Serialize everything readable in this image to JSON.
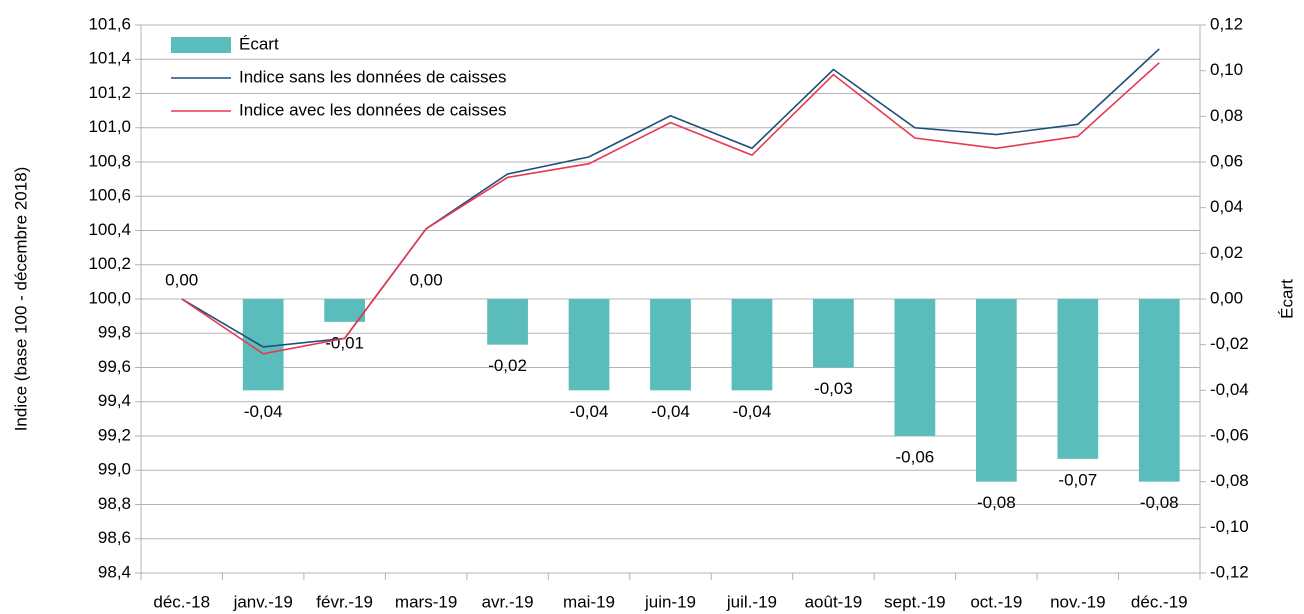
{
  "chart_data": {
    "type": "combo",
    "categories": [
      "déc.-18",
      "janv.-19",
      "févr.-19",
      "mars-19",
      "avr.-19",
      "mai-19",
      "juin-19",
      "juil.-19",
      "août-19",
      "sept.-19",
      "oct.-19",
      "nov.-19",
      "déc.-19"
    ],
    "ylabel": "Indice (base 100 - décembre 2018)",
    "y2label": "Écart",
    "ylim": [
      98.4,
      101.6
    ],
    "yticks": [
      {
        "value": 98.4,
        "label": "98,4"
      },
      {
        "value": 98.6,
        "label": "98,6"
      },
      {
        "value": 98.8,
        "label": "98,8"
      },
      {
        "value": 99.0,
        "label": "99,0"
      },
      {
        "value": 99.2,
        "label": "99,2"
      },
      {
        "value": 99.4,
        "label": "99,4"
      },
      {
        "value": 99.6,
        "label": "99,6"
      },
      {
        "value": 99.8,
        "label": "99,8"
      },
      {
        "value": 100.0,
        "label": "100,0"
      },
      {
        "value": 100.2,
        "label": "100,2"
      },
      {
        "value": 100.4,
        "label": "100,4"
      },
      {
        "value": 100.6,
        "label": "100,6"
      },
      {
        "value": 100.8,
        "label": "100,8"
      },
      {
        "value": 101.0,
        "label": "101,0"
      },
      {
        "value": 101.2,
        "label": "101,2"
      },
      {
        "value": 101.4,
        "label": "101,4"
      },
      {
        "value": 101.6,
        "label": "101,6"
      }
    ],
    "y2lim": [
      -0.12,
      0.12
    ],
    "y2ticks": [
      {
        "value": -0.12,
        "label": "-0,12"
      },
      {
        "value": -0.1,
        "label": "-0,10"
      },
      {
        "value": -0.08,
        "label": "-0,08"
      },
      {
        "value": -0.06,
        "label": "-0,06"
      },
      {
        "value": -0.04,
        "label": "-0,04"
      },
      {
        "value": -0.02,
        "label": "-0,02"
      },
      {
        "value": 0.0,
        "label": "0,00"
      },
      {
        "value": 0.02,
        "label": "0,02"
      },
      {
        "value": 0.04,
        "label": "0,04"
      },
      {
        "value": 0.06,
        "label": "0,06"
      },
      {
        "value": 0.08,
        "label": "0,08"
      },
      {
        "value": 0.1,
        "label": "0,10"
      },
      {
        "value": 0.12,
        "label": "0,12"
      }
    ],
    "grid": true,
    "legend": "upper left",
    "series": [
      {
        "name": "Écart",
        "type": "bar",
        "axis": "y2",
        "color": "#5bbcbc",
        "values": [
          0.0,
          -0.04,
          -0.01,
          0.0,
          -0.02,
          -0.04,
          -0.04,
          -0.04,
          -0.03,
          -0.06,
          -0.08,
          -0.07,
          -0.08
        ],
        "value_labels": [
          "0,00",
          "-0,04",
          "-0,01",
          "0,00",
          "-0,02",
          "-0,04",
          "-0,04",
          "-0,04",
          "-0,03",
          "-0,06",
          "-0,08",
          "-0,07",
          "-0,08"
        ]
      },
      {
        "name": "Indice sans les données de caisses",
        "type": "line",
        "color": "#1f4e79",
        "values": [
          100.0,
          99.72,
          99.77,
          100.41,
          100.73,
          100.83,
          101.07,
          100.88,
          101.34,
          101.0,
          100.96,
          101.02,
          101.46
        ]
      },
      {
        "name": "Indice avec les données de caisses",
        "type": "line",
        "color": "#e8384f",
        "values": [
          100.0,
          99.68,
          99.77,
          100.41,
          100.71,
          100.79,
          101.03,
          100.84,
          101.31,
          100.94,
          100.88,
          100.95,
          101.38
        ]
      }
    ]
  }
}
